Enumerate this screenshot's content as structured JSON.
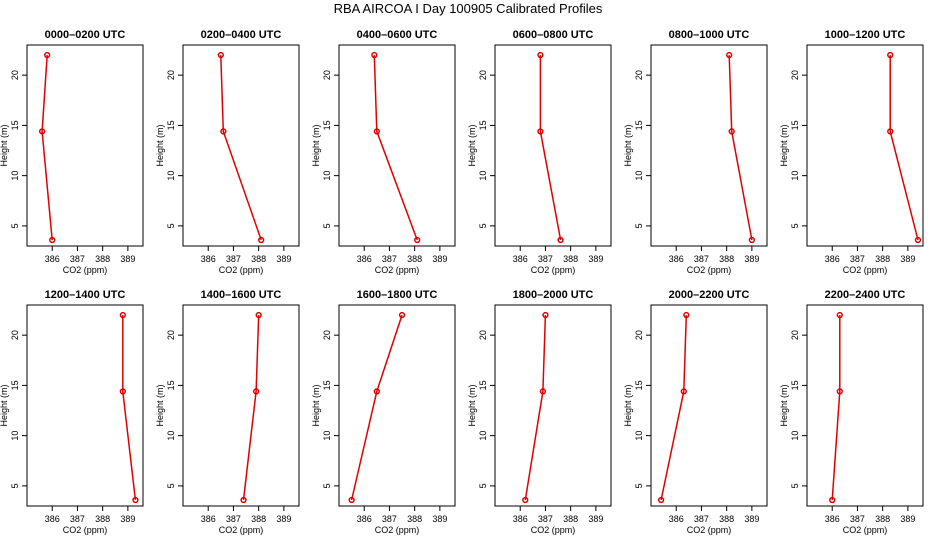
{
  "title": "RBA AIRCOA I  Day 100905  Calibrated Profiles",
  "chart_data": [
    {
      "type": "line",
      "title": "0000–0200 UTC",
      "xlabel": "CO2 (ppm)",
      "ylabel": "Height (m)",
      "xlim": [
        385,
        389.6
      ],
      "ylim": [
        3,
        23
      ],
      "xticks": [
        386,
        387,
        388,
        389
      ],
      "yticks": [
        5,
        10,
        15,
        20
      ],
      "x": [
        385.8,
        385.6,
        386.0
      ],
      "y": [
        22,
        14.4,
        3.6
      ],
      "color": "#e00000"
    },
    {
      "type": "line",
      "title": "0200–0400 UTC",
      "xlabel": "CO2 (ppm)",
      "ylabel": "Height (m)",
      "xlim": [
        385,
        389.6
      ],
      "ylim": [
        3,
        23
      ],
      "xticks": [
        386,
        387,
        388,
        389
      ],
      "yticks": [
        5,
        10,
        15,
        20
      ],
      "x": [
        386.5,
        386.6,
        388.1
      ],
      "y": [
        22,
        14.4,
        3.6
      ],
      "color": "#e00000"
    },
    {
      "type": "line",
      "title": "0400–0600 UTC",
      "xlabel": "CO2 (ppm)",
      "ylabel": "Height (m)",
      "xlim": [
        385,
        389.6
      ],
      "ylim": [
        3,
        23
      ],
      "xticks": [
        386,
        387,
        388,
        389
      ],
      "yticks": [
        5,
        10,
        15,
        20
      ],
      "x": [
        386.4,
        386.5,
        388.1
      ],
      "y": [
        22,
        14.4,
        3.6
      ],
      "color": "#e00000"
    },
    {
      "type": "line",
      "title": "0600–0800 UTC",
      "xlabel": "CO2 (ppm)",
      "ylabel": "Height (m)",
      "xlim": [
        385,
        389.6
      ],
      "ylim": [
        3,
        23
      ],
      "xticks": [
        386,
        387,
        388,
        389
      ],
      "yticks": [
        5,
        10,
        15,
        20
      ],
      "x": [
        386.8,
        386.8,
        387.6
      ],
      "y": [
        22,
        14.4,
        3.6
      ],
      "color": "#e00000"
    },
    {
      "type": "line",
      "title": "0800–1000 UTC",
      "xlabel": "CO2 (ppm)",
      "ylabel": "Height (m)",
      "xlim": [
        385,
        389.6
      ],
      "ylim": [
        3,
        23
      ],
      "xticks": [
        386,
        387,
        388,
        389
      ],
      "yticks": [
        5,
        10,
        15,
        20
      ],
      "x": [
        388.1,
        388.2,
        389.0
      ],
      "y": [
        22,
        14.4,
        3.6
      ],
      "color": "#e00000"
    },
    {
      "type": "line",
      "title": "1000–1200 UTC",
      "xlabel": "CO2 (ppm)",
      "ylabel": "Height (m)",
      "xlim": [
        385,
        389.6
      ],
      "ylim": [
        3,
        23
      ],
      "xticks": [
        386,
        387,
        388,
        389
      ],
      "yticks": [
        5,
        10,
        15,
        20
      ],
      "x": [
        388.3,
        388.3,
        389.4
      ],
      "y": [
        22,
        14.4,
        3.6
      ],
      "color": "#e00000"
    },
    {
      "type": "line",
      "title": "1200–1400 UTC",
      "xlabel": "CO2 (ppm)",
      "ylabel": "Height (m)",
      "xlim": [
        385,
        389.6
      ],
      "ylim": [
        3,
        23
      ],
      "xticks": [
        386,
        387,
        388,
        389
      ],
      "yticks": [
        5,
        10,
        15,
        20
      ],
      "x": [
        388.8,
        388.8,
        389.3
      ],
      "y": [
        22,
        14.4,
        3.6
      ],
      "color": "#e00000"
    },
    {
      "type": "line",
      "title": "1400–1600 UTC",
      "xlabel": "CO2 (ppm)",
      "ylabel": "Height (m)",
      "xlim": [
        385,
        389.6
      ],
      "ylim": [
        3,
        23
      ],
      "xticks": [
        386,
        387,
        388,
        389
      ],
      "yticks": [
        5,
        10,
        15,
        20
      ],
      "x": [
        388.0,
        387.9,
        387.4
      ],
      "y": [
        22,
        14.4,
        3.6
      ],
      "color": "#e00000"
    },
    {
      "type": "line",
      "title": "1600–1800 UTC",
      "xlabel": "CO2 (ppm)",
      "ylabel": "Height (m)",
      "xlim": [
        385,
        389.6
      ],
      "ylim": [
        3,
        23
      ],
      "xticks": [
        386,
        387,
        388,
        389
      ],
      "yticks": [
        5,
        10,
        15,
        20
      ],
      "x": [
        387.5,
        386.5,
        385.5
      ],
      "y": [
        22,
        14.4,
        3.6
      ],
      "color": "#e00000"
    },
    {
      "type": "line",
      "title": "1800–2000 UTC",
      "xlabel": "CO2 (ppm)",
      "ylabel": "Height (m)",
      "xlim": [
        385,
        389.6
      ],
      "ylim": [
        3,
        23
      ],
      "xticks": [
        386,
        387,
        388,
        389
      ],
      "yticks": [
        5,
        10,
        15,
        20
      ],
      "x": [
        387.0,
        386.9,
        386.2
      ],
      "y": [
        22,
        14.4,
        3.6
      ],
      "color": "#e00000"
    },
    {
      "type": "line",
      "title": "2000–2200 UTC",
      "xlabel": "CO2 (ppm)",
      "ylabel": "Height (m)",
      "xlim": [
        385,
        389.6
      ],
      "ylim": [
        3,
        23
      ],
      "xticks": [
        386,
        387,
        388,
        389
      ],
      "yticks": [
        5,
        10,
        15,
        20
      ],
      "x": [
        386.4,
        386.3,
        385.4
      ],
      "y": [
        22,
        14.4,
        3.6
      ],
      "color": "#e00000"
    },
    {
      "type": "line",
      "title": "2200–2400 UTC",
      "xlabel": "CO2 (ppm)",
      "ylabel": "Height (m)",
      "xlim": [
        385,
        389.6
      ],
      "ylim": [
        3,
        23
      ],
      "xticks": [
        386,
        387,
        388,
        389
      ],
      "yticks": [
        5,
        10,
        15,
        20
      ],
      "x": [
        386.3,
        386.3,
        386.0
      ],
      "y": [
        22,
        14.4,
        3.6
      ],
      "color": "#e00000"
    }
  ]
}
